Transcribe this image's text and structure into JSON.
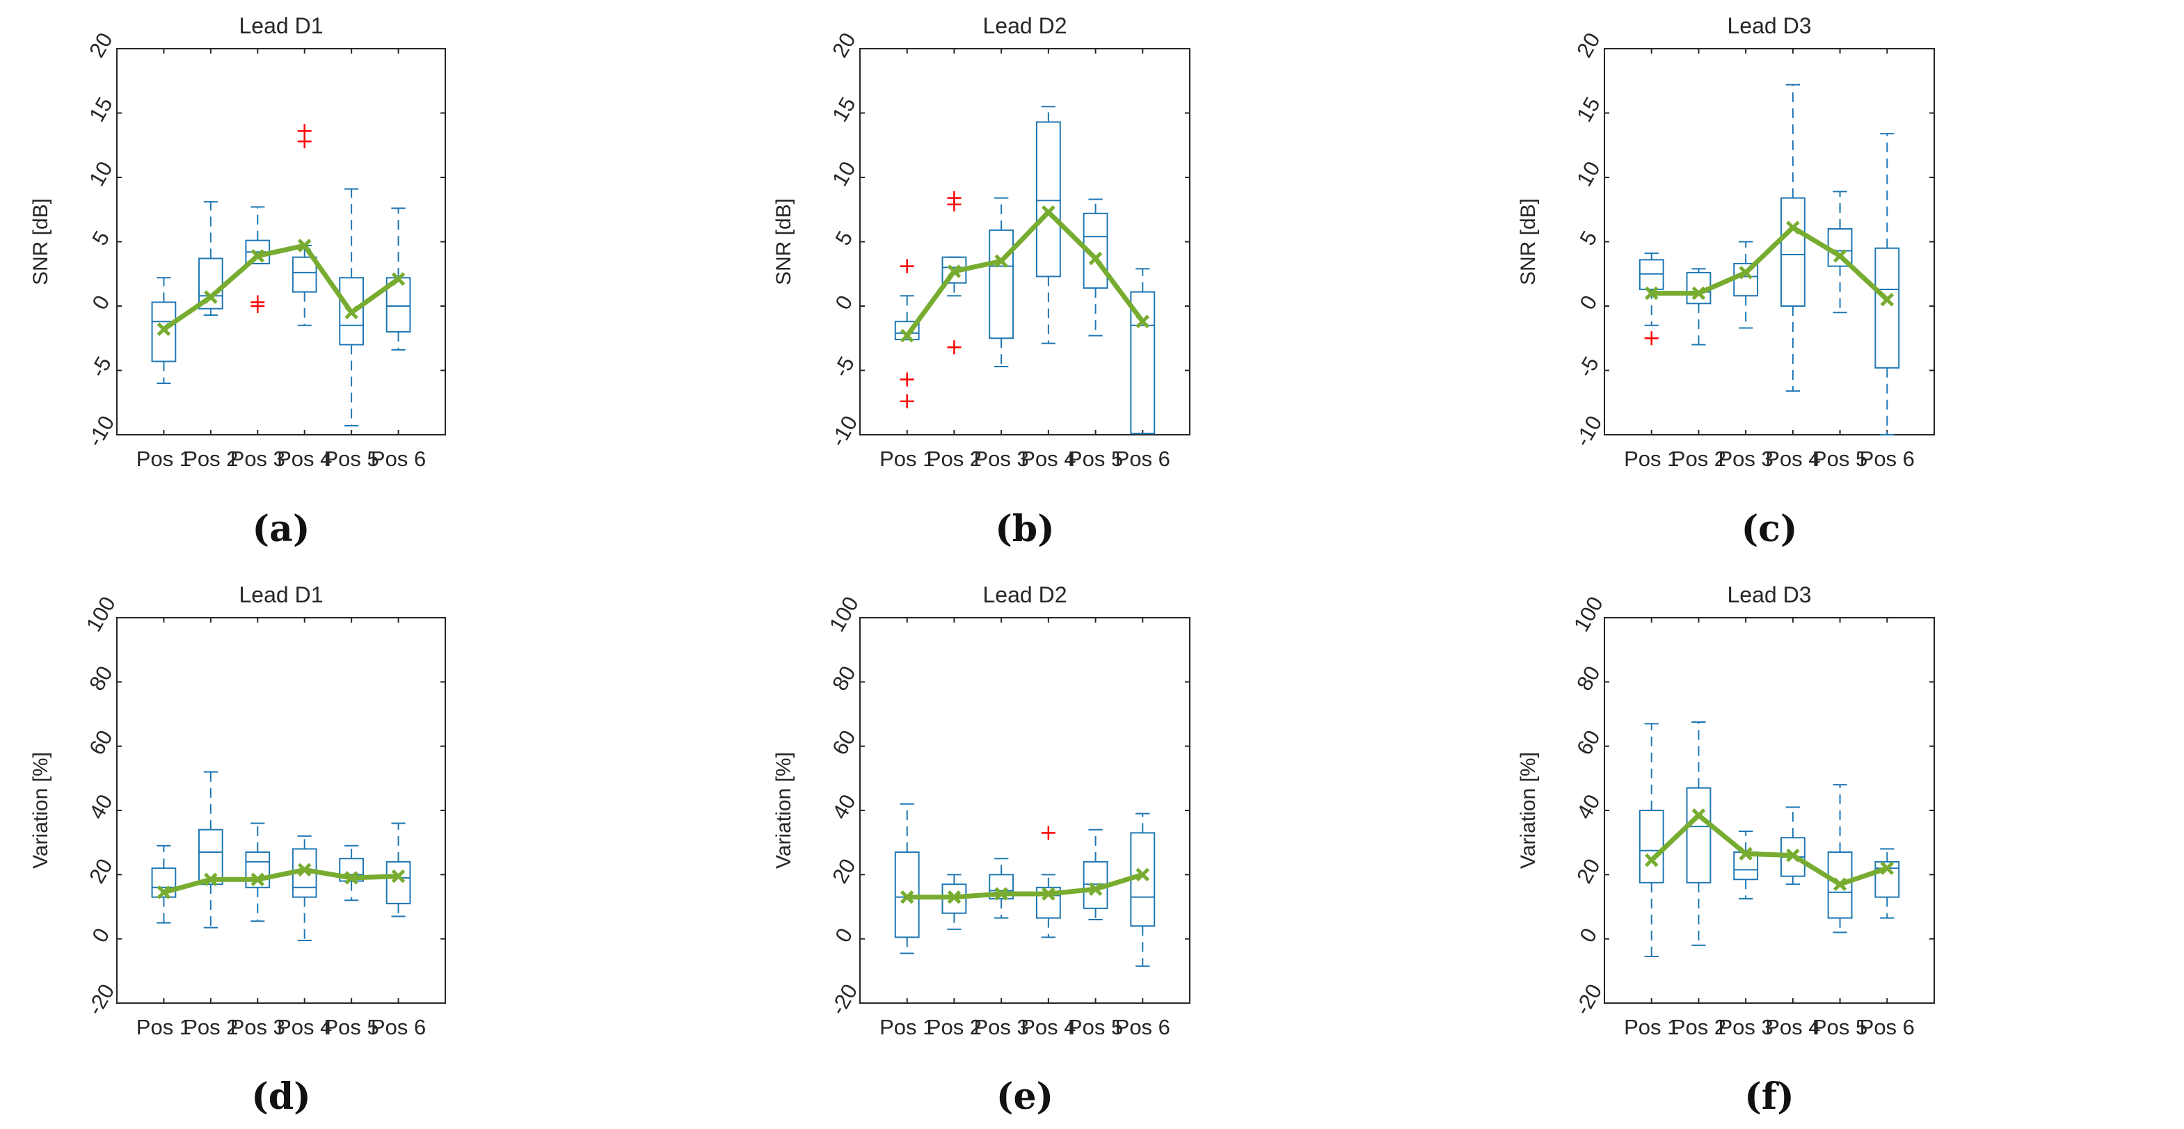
{
  "colors": {
    "box": "#1f77b4",
    "outlier": "#ff0000",
    "mean_line": "#77ac30",
    "axis": "#262626"
  },
  "chart_data": [
    {
      "type": "box",
      "panel_label": "(a)",
      "title": "Lead D1",
      "ylabel": "SNR [dB]",
      "xlabel": "",
      "ylim": [
        -10,
        20
      ],
      "yticks": [
        "-10",
        "-5",
        "0",
        "5",
        "10",
        "15",
        "20"
      ],
      "categories": [
        "Pos 1",
        "Pos 2",
        "Pos 3",
        "Pos 4",
        "Pos 5",
        "Pos 6"
      ],
      "boxes": [
        {
          "whisker_low": -6,
          "q1": -4.3,
          "median": -1.2,
          "q3": 0.3,
          "whisker_high": 2.2,
          "outliers": []
        },
        {
          "whisker_low": -0.7,
          "q1": -0.2,
          "median": 0.8,
          "q3": 3.7,
          "whisker_high": 8.1,
          "outliers": []
        },
        {
          "whisker_low": 3.3,
          "q1": 3.3,
          "median": 4.2,
          "q3": 5.1,
          "whisker_high": 7.7,
          "outliers": [
            0,
            0.3
          ]
        },
        {
          "whisker_low": -1.5,
          "q1": 1.1,
          "median": 2.6,
          "q3": 3.8,
          "whisker_high": 4.7,
          "outliers": [
            12.8,
            13.6
          ]
        },
        {
          "whisker_low": -9.3,
          "q1": -3.0,
          "median": -1.5,
          "q3": 2.2,
          "whisker_high": 9.1,
          "outliers": []
        },
        {
          "whisker_low": -3.4,
          "q1": -2.0,
          "median": 0.0,
          "q3": 2.2,
          "whisker_high": 7.6,
          "outliers": []
        }
      ],
      "mean_line": [
        -1.8,
        0.7,
        3.9,
        4.7,
        -0.5,
        2.1
      ]
    },
    {
      "type": "box",
      "panel_label": "(b)",
      "title": "Lead D2",
      "ylabel": "SNR [dB]",
      "xlabel": "",
      "ylim": [
        -10,
        20
      ],
      "yticks": [
        "-10",
        "-5",
        "0",
        "5",
        "10",
        "15",
        "20"
      ],
      "categories": [
        "Pos 1",
        "Pos 2",
        "Pos 3",
        "Pos 4",
        "Pos 5",
        "Pos 6"
      ],
      "boxes": [
        {
          "whisker_low": -2.6,
          "q1": -2.6,
          "median": -2.1,
          "q3": -1.2,
          "whisker_high": 0.8,
          "outliers": [
            3.1,
            -5.7,
            -7.4
          ]
        },
        {
          "whisker_low": 0.8,
          "q1": 1.8,
          "median": 3.0,
          "q3": 3.8,
          "whisker_high": 3.8,
          "outliers": [
            7.9,
            8.4,
            -3.2
          ]
        },
        {
          "whisker_low": -4.7,
          "q1": -2.5,
          "median": 3.1,
          "q3": 5.9,
          "whisker_high": 8.4,
          "outliers": []
        },
        {
          "whisker_low": -2.9,
          "q1": 2.3,
          "median": 8.2,
          "q3": 14.3,
          "whisker_high": 15.5,
          "outliers": []
        },
        {
          "whisker_low": -2.3,
          "q1": 1.4,
          "median": 5.4,
          "q3": 7.2,
          "whisker_high": 8.3,
          "outliers": []
        },
        {
          "whisker_low": -9.9,
          "q1": -9.9,
          "median": -1.5,
          "q3": 1.1,
          "whisker_high": 2.9,
          "outliers": []
        }
      ],
      "mean_line": [
        -2.3,
        2.7,
        3.5,
        7.3,
        3.7,
        -1.2
      ]
    },
    {
      "type": "box",
      "panel_label": "(c)",
      "title": "Lead D3",
      "ylabel": "SNR [dB]",
      "xlabel": "",
      "ylim": [
        -10,
        20
      ],
      "yticks": [
        "-10",
        "-5",
        "0",
        "5",
        "10",
        "15",
        "20"
      ],
      "categories": [
        "Pos 1",
        "Pos 2",
        "Pos 3",
        "Pos 4",
        "Pos 5",
        "Pos 6"
      ],
      "boxes": [
        {
          "whisker_low": -1.5,
          "q1": 1.3,
          "median": 2.5,
          "q3": 3.6,
          "whisker_high": 4.1,
          "outliers": [
            -2.5
          ]
        },
        {
          "whisker_low": -3.0,
          "q1": 0.2,
          "median": 1.1,
          "q3": 2.6,
          "whisker_high": 2.9,
          "outliers": []
        },
        {
          "whisker_low": -1.7,
          "q1": 0.8,
          "median": 2.3,
          "q3": 3.3,
          "whisker_high": 5.0,
          "outliers": []
        },
        {
          "whisker_low": -6.6,
          "q1": 0.0,
          "median": 4.0,
          "q3": 8.4,
          "whisker_high": 17.2,
          "outliers": []
        },
        {
          "whisker_low": -0.5,
          "q1": 3.1,
          "median": 4.3,
          "q3": 6.0,
          "whisker_high": 8.9,
          "outliers": []
        },
        {
          "whisker_low": -10,
          "q1": -4.8,
          "median": 1.3,
          "q3": 4.5,
          "whisker_high": 13.4,
          "outliers": []
        }
      ],
      "mean_line": [
        1.0,
        1.0,
        2.6,
        6.1,
        3.9,
        0.5
      ]
    },
    {
      "type": "box",
      "panel_label": "(d)",
      "title": "Lead D1",
      "ylabel": "Variation [%]",
      "xlabel": "",
      "ylim": [
        -20,
        100
      ],
      "yticks": [
        "-20",
        "0",
        "20",
        "40",
        "60",
        "80",
        "100"
      ],
      "categories": [
        "Pos 1",
        "Pos 2",
        "Pos 3",
        "Pos 4",
        "Pos 5",
        "Pos 6"
      ],
      "boxes": [
        {
          "whisker_low": 5,
          "q1": 13,
          "median": 16,
          "q3": 22,
          "whisker_high": 29,
          "outliers": []
        },
        {
          "whisker_low": 3.5,
          "q1": 17,
          "median": 27,
          "q3": 34,
          "whisker_high": 52,
          "outliers": []
        },
        {
          "whisker_low": 5.5,
          "q1": 16,
          "median": 24,
          "q3": 27,
          "whisker_high": 36,
          "outliers": []
        },
        {
          "whisker_low": -0.5,
          "q1": 13,
          "median": 16,
          "q3": 28,
          "whisker_high": 32,
          "outliers": []
        },
        {
          "whisker_low": 12,
          "q1": 18,
          "median": 20,
          "q3": 25,
          "whisker_high": 29,
          "outliers": []
        },
        {
          "whisker_low": 7,
          "q1": 11,
          "median": 19,
          "q3": 24,
          "whisker_high": 36,
          "outliers": []
        }
      ],
      "mean_line": [
        14.5,
        18.5,
        18.5,
        21.5,
        19,
        19.5
      ]
    },
    {
      "type": "box",
      "panel_label": "(e)",
      "title": "Lead D2",
      "ylabel": "Variation [%]",
      "xlabel": "",
      "ylim": [
        -20,
        100
      ],
      "yticks": [
        "-20",
        "0",
        "20",
        "40",
        "60",
        "80",
        "100"
      ],
      "categories": [
        "Pos 1",
        "Pos 2",
        "Pos 3",
        "Pos 4",
        "Pos 5",
        "Pos 6"
      ],
      "boxes": [
        {
          "whisker_low": -4.5,
          "q1": 0.5,
          "median": 13,
          "q3": 27,
          "whisker_high": 42,
          "outliers": []
        },
        {
          "whisker_low": 3,
          "q1": 8,
          "median": 13,
          "q3": 17,
          "whisker_high": 20,
          "outliers": []
        },
        {
          "whisker_low": 6.5,
          "q1": 12.5,
          "median": 15,
          "q3": 20,
          "whisker_high": 25,
          "outliers": []
        },
        {
          "whisker_low": 0.5,
          "q1": 6.5,
          "median": 13.5,
          "q3": 16,
          "whisker_high": 20,
          "outliers": [
            33
          ]
        },
        {
          "whisker_low": 6,
          "q1": 9.5,
          "median": 17,
          "q3": 24,
          "whisker_high": 34,
          "outliers": []
        },
        {
          "whisker_low": -8.5,
          "q1": 4,
          "median": 13,
          "q3": 33,
          "whisker_high": 39,
          "outliers": []
        }
      ],
      "mean_line": [
        13,
        13,
        14,
        14,
        15.5,
        20
      ]
    },
    {
      "type": "box",
      "panel_label": "(f)",
      "title": "Lead D3",
      "ylabel": "Variation [%]",
      "xlabel": "",
      "ylim": [
        -20,
        100
      ],
      "yticks": [
        "-20",
        "0",
        "20",
        "40",
        "60",
        "80",
        "100"
      ],
      "categories": [
        "Pos 1",
        "Pos 2",
        "Pos 3",
        "Pos 4",
        "Pos 5",
        "Pos 6"
      ],
      "boxes": [
        {
          "whisker_low": -5.5,
          "q1": 17.5,
          "median": 27.5,
          "q3": 40,
          "whisker_high": 67,
          "outliers": []
        },
        {
          "whisker_low": -2,
          "q1": 17.5,
          "median": 35,
          "q3": 47,
          "whisker_high": 67.5,
          "outliers": []
        },
        {
          "whisker_low": 12.5,
          "q1": 18.5,
          "median": 21.5,
          "q3": 27,
          "whisker_high": 33.5,
          "outliers": []
        },
        {
          "whisker_low": 17,
          "q1": 19.5,
          "median": 25.5,
          "q3": 31.5,
          "whisker_high": 41,
          "outliers": []
        },
        {
          "whisker_low": 2,
          "q1": 6.5,
          "median": 14.5,
          "q3": 27,
          "whisker_high": 48,
          "outliers": []
        },
        {
          "whisker_low": 6.5,
          "q1": 13,
          "median": 22,
          "q3": 24,
          "whisker_high": 28,
          "outliers": []
        }
      ],
      "mean_line": [
        24.5,
        38.5,
        26.5,
        26,
        17,
        22
      ]
    }
  ]
}
